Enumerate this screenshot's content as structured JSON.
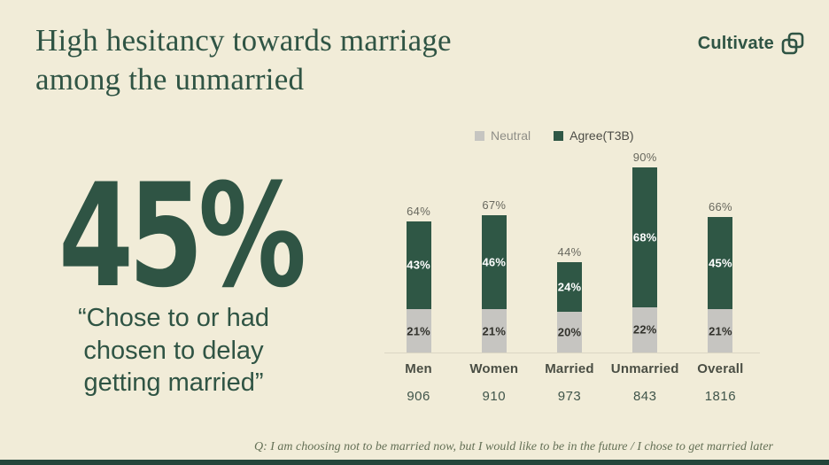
{
  "slide": {
    "title_line1": "High hesitancy towards marriage",
    "title_line2": "among the unmarried",
    "brand": {
      "name": "Cultivate"
    },
    "stat": {
      "value": "45%",
      "quote_line1": "“Chose to or had",
      "quote_line2": "chosen to delay",
      "quote_line3": "getting married”"
    },
    "footnote": "Q: I am choosing not to be married now, but I would like to be in the future / I chose to get married later"
  },
  "colors": {
    "background": "#f1ecd8",
    "primary_green": "#2f5444",
    "bar_green": "#2f5745",
    "bar_gray": "#c6c5c1",
    "bottom_bar": "#24453a"
  },
  "chart_data": {
    "type": "bar",
    "stacked": true,
    "categories": [
      "Men",
      "Women",
      "Married",
      "Unmarried",
      "Overall"
    ],
    "sample_sizes": [
      "906",
      "910",
      "973",
      "843",
      "1816"
    ],
    "series": [
      {
        "name": "Neutral",
        "values": [
          21,
          21,
          20,
          22,
          21
        ],
        "color": "#c6c5c1",
        "label_color": "#32322c"
      },
      {
        "name": "Agree(T3B)",
        "values": [
          43,
          46,
          24,
          68,
          45
        ],
        "color": "#2f5745",
        "label_color": "#ffffff"
      }
    ],
    "totals": [
      64,
      67,
      44,
      90,
      66
    ],
    "title": "",
    "xlabel": "",
    "ylabel": "",
    "ylim": [
      0,
      100
    ],
    "legend_position": "top",
    "grid": false
  }
}
